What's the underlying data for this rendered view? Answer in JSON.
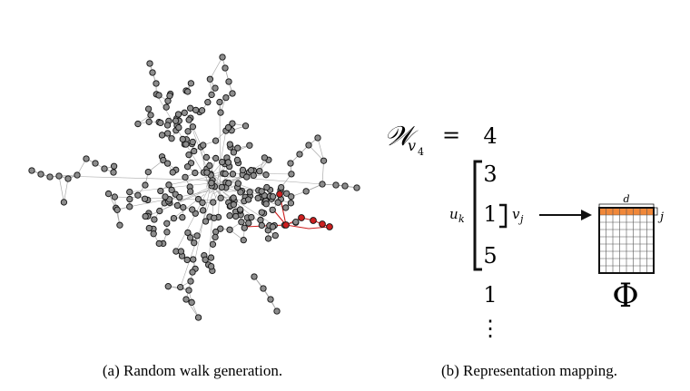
{
  "panel_a": {
    "caption": "(a) Random walk generation.",
    "node_color": "#8c8c8c",
    "edge_color": "#aaaaaa",
    "walk_color": "#cc1f1f"
  },
  "panel_b": {
    "caption": "(b) Representation mapping.",
    "walk_symbol": "𝒲",
    "walk_subscript": "v",
    "walk_subsubscript": "4",
    "equals": "=",
    "sequence": [
      "4",
      "3",
      "1",
      "5",
      "1"
    ],
    "ellipsis": "⋮",
    "context_label_u": "u",
    "context_label_u_sub": "k",
    "target_label_v": "v",
    "target_label_v_sub": "j",
    "matrix_dim_label": "d",
    "matrix_row_label": "j",
    "matrix_symbol": "Φ",
    "highlight_color": "#f0883a"
  }
}
